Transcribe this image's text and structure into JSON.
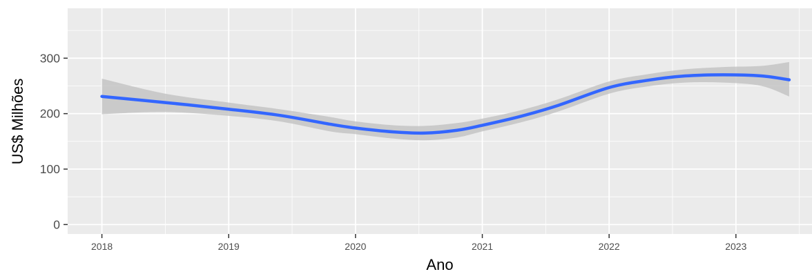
{
  "chart_data": {
    "type": "line",
    "title": "",
    "xlabel": "Ano",
    "ylabel": "US$ Milhões",
    "xlim": [
      2017.73,
      2023.6
    ],
    "ylim": [
      -17,
      390
    ],
    "x_ticks": [
      "2018",
      "2019",
      "2020",
      "2021",
      "2022",
      "2023"
    ],
    "y_ticks": [
      "0",
      "100",
      "200",
      "300"
    ],
    "grid": true,
    "legend": "none",
    "background": "#EBEBEB",
    "grid_color": "#FFFFFF",
    "band_color": "#BFBFBF",
    "series": [
      {
        "color": "#3366FF",
        "x": [
          2018.0,
          2018.5,
          2019.0,
          2019.4,
          2019.8,
          2020.0,
          2020.3,
          2020.55,
          2020.8,
          2021.0,
          2021.3,
          2021.6,
          2022.0,
          2022.3,
          2022.6,
          2022.9,
          2023.2,
          2023.42
        ],
        "y": [
          231,
          220,
          208,
          197,
          181,
          174,
          167,
          165,
          170,
          179,
          195,
          215,
          247,
          260,
          268,
          270,
          268,
          261
        ],
        "lower": [
          199,
          203,
          196,
          186,
          168,
          163,
          155,
          152,
          157,
          168,
          184,
          204,
          236,
          249,
          256,
          256,
          250,
          231
        ],
        "upper": [
          263,
          236,
          220,
          208,
          194,
          186,
          179,
          178,
          183,
          191,
          206,
          226,
          258,
          271,
          280,
          284,
          286,
          293
        ]
      }
    ]
  }
}
